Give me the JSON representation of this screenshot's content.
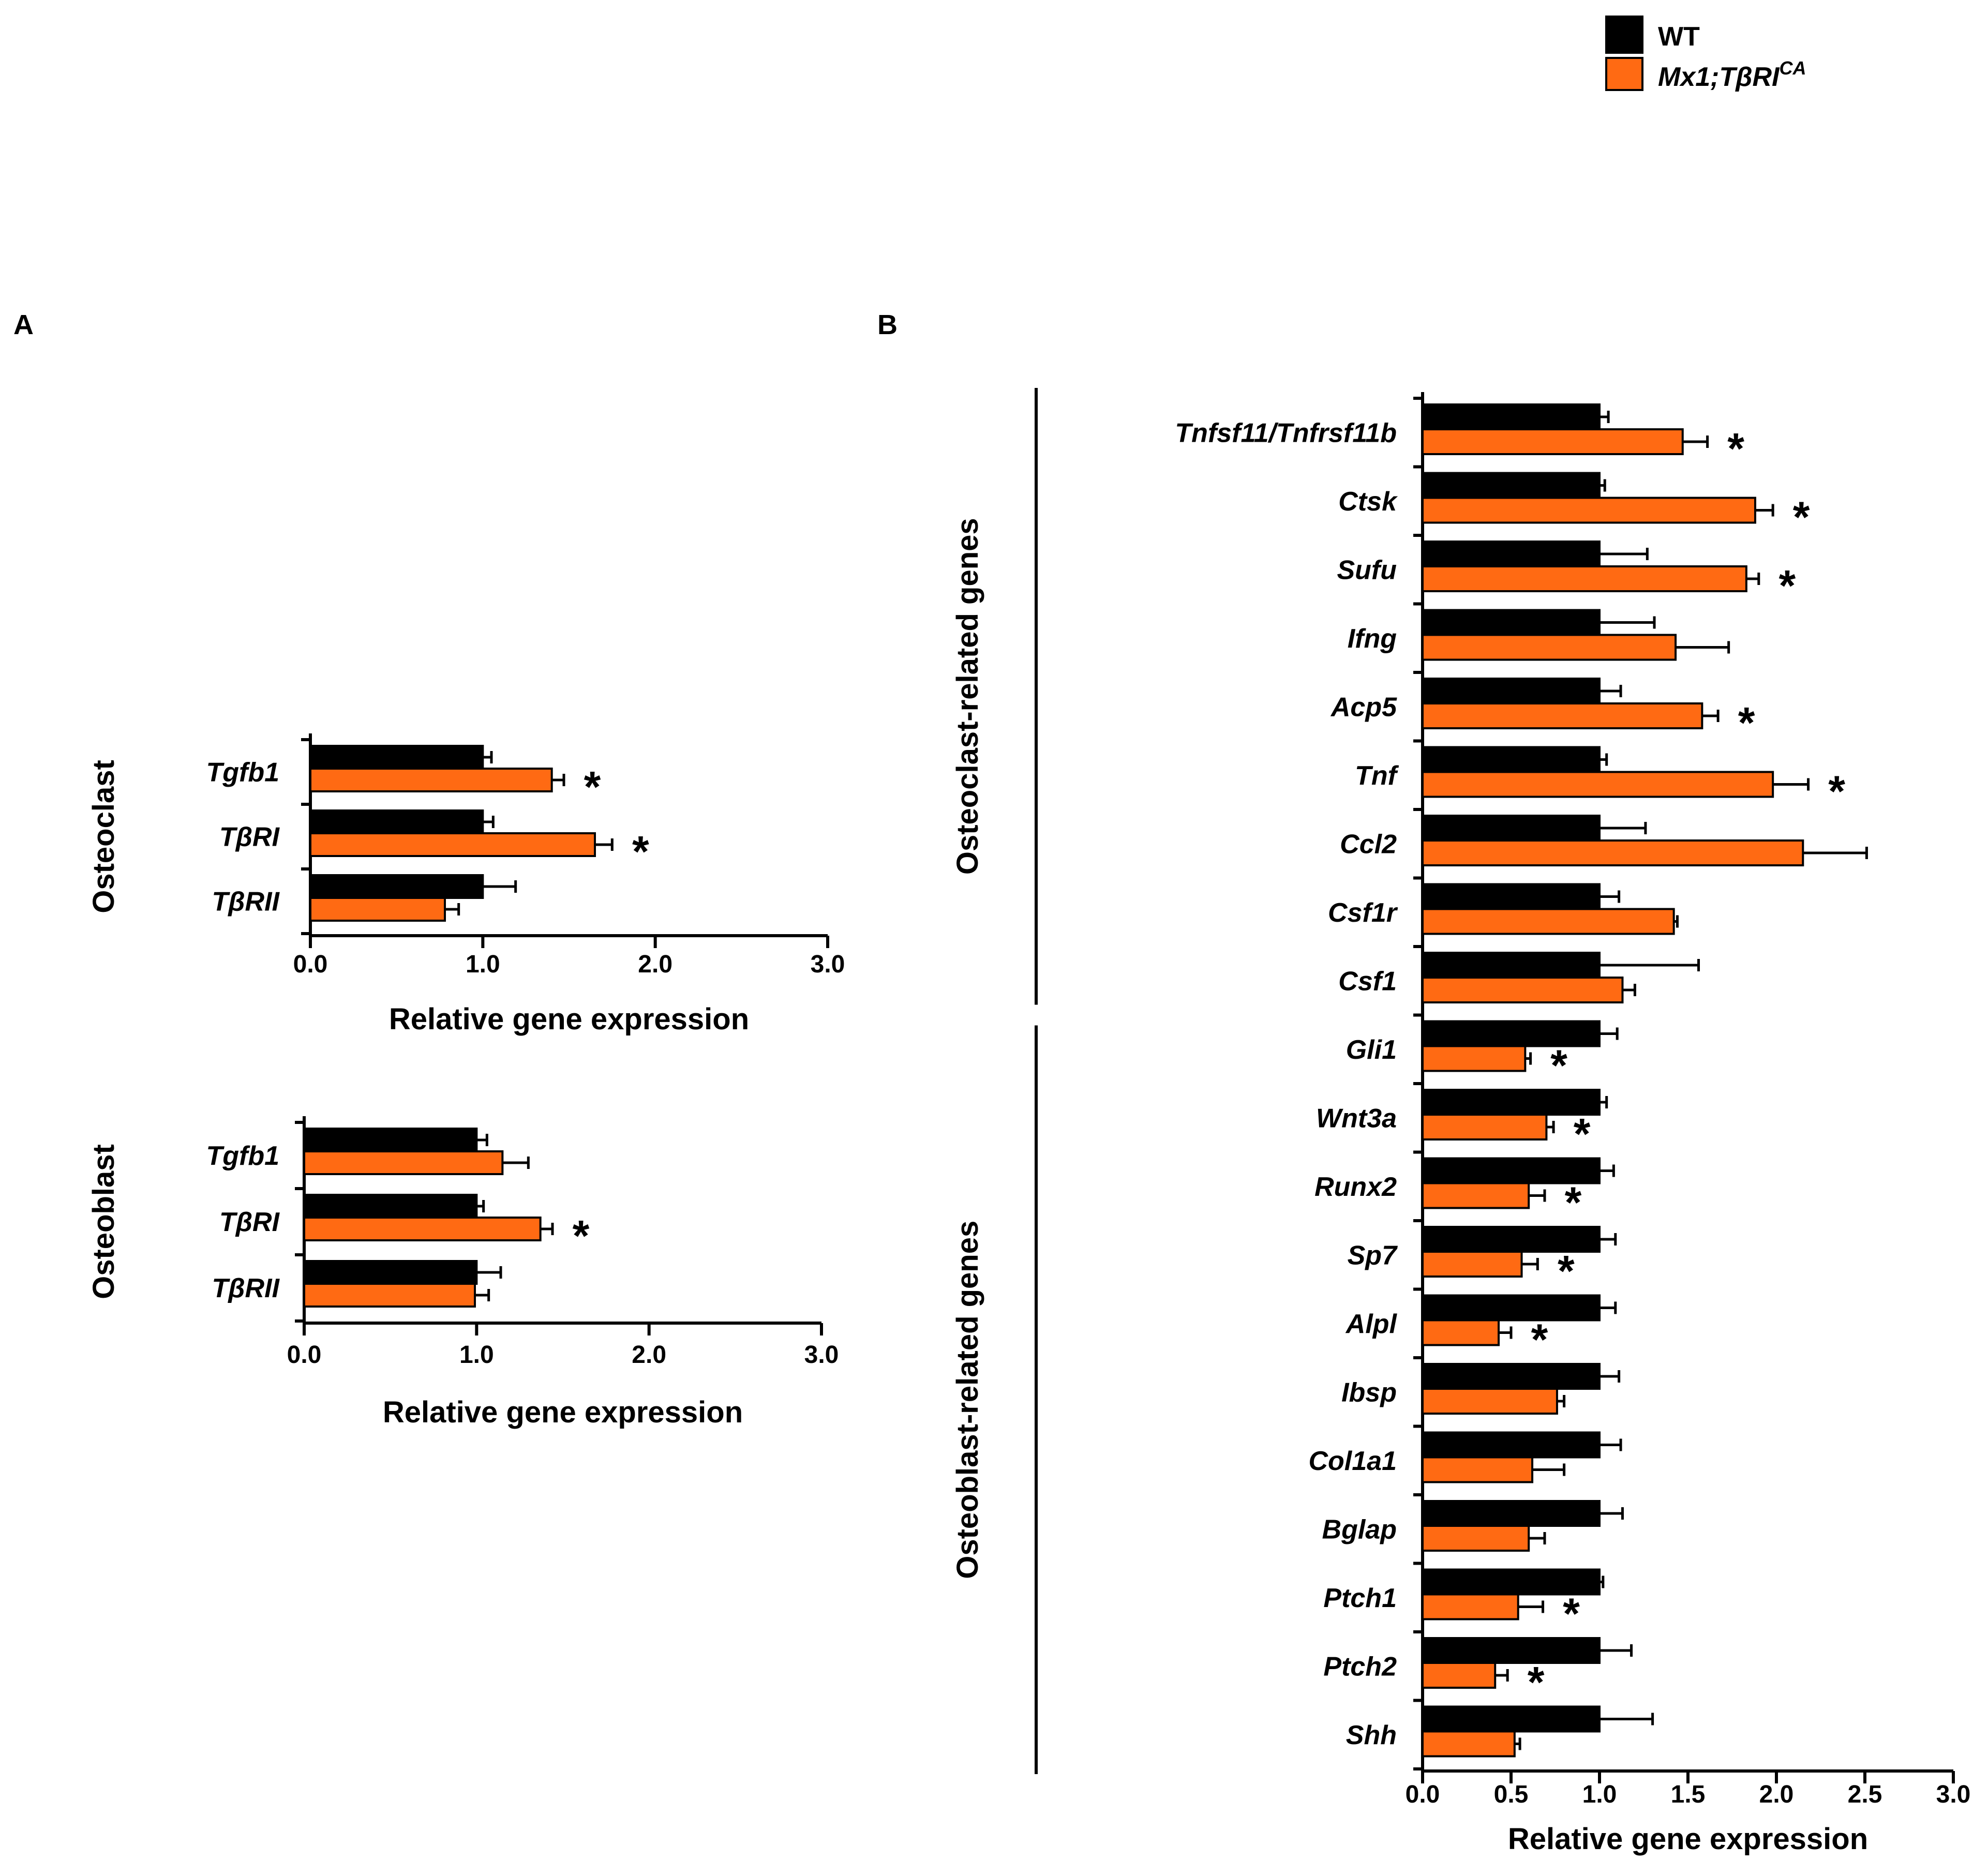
{
  "legend": {
    "wt": "WT",
    "mutant_main": "Mx1;TβRI",
    "mutant_sup": "CA"
  },
  "colors": {
    "wt": "#000000",
    "mutant": "#ff6a13"
  },
  "panels": {
    "A": {
      "label": "A"
    },
    "B": {
      "label": "B"
    }
  },
  "chart_data": [
    {
      "id": "A-osteoclast",
      "type": "bar",
      "orientation": "horizontal",
      "panel": "A",
      "group_label": "Osteoclast",
      "categories": [
        "Tgfb1",
        "TβRI",
        "TβRII"
      ],
      "series": [
        {
          "name": "WT",
          "values": [
            1.0,
            1.0,
            1.0
          ],
          "errors": [
            0.05,
            0.06,
            0.19
          ]
        },
        {
          "name": "Mx1;TβRICA",
          "values": [
            1.4,
            1.65,
            0.78
          ],
          "errors": [
            0.07,
            0.1,
            0.08
          ]
        }
      ],
      "significant": [
        true,
        true,
        false
      ],
      "xlabel": "Relative gene expression",
      "xlim": [
        0,
        3
      ],
      "xticks": [
        "0.0",
        "1.0",
        "2.0",
        "3.0"
      ]
    },
    {
      "id": "A-osteoblast",
      "type": "bar",
      "orientation": "horizontal",
      "panel": "A",
      "group_label": "Osteoblast",
      "categories": [
        "Tgfb1",
        "TβRI",
        "TβRII"
      ],
      "series": [
        {
          "name": "WT",
          "values": [
            1.0,
            1.0,
            1.0
          ],
          "errors": [
            0.06,
            0.04,
            0.14
          ]
        },
        {
          "name": "Mx1;TβRICA",
          "values": [
            1.15,
            1.37,
            0.99
          ],
          "errors": [
            0.15,
            0.07,
            0.08
          ]
        }
      ],
      "significant": [
        false,
        true,
        false
      ],
      "xlabel": "Relative gene expression",
      "xlim": [
        0,
        3
      ],
      "xticks": [
        "0.0",
        "1.0",
        "2.0",
        "3.0"
      ]
    },
    {
      "id": "B",
      "type": "bar",
      "orientation": "horizontal",
      "panel": "B",
      "groups": [
        {
          "label": "Osteoclast-related genes",
          "count": 9
        },
        {
          "label": "Osteoblast-related genes",
          "count": 11
        }
      ],
      "categories": [
        "Tnfsf11/Tnfrsf11b",
        "Ctsk",
        "Sufu",
        "Ifng",
        "Acp5",
        "Tnf",
        "Ccl2",
        "Csf1r",
        "Csf1",
        "Gli1",
        "Wnt3a",
        "Runx2",
        "Sp7",
        "Alpl",
        "Ibsp",
        "Col1a1",
        "Bglap",
        "Ptch1",
        "Ptch2",
        "Shh"
      ],
      "series": [
        {
          "name": "WT",
          "values": [
            1.0,
            1.0,
            1.0,
            1.0,
            1.0,
            1.0,
            1.0,
            1.0,
            1.0,
            1.0,
            1.0,
            1.0,
            1.0,
            1.0,
            1.0,
            1.0,
            1.0,
            1.0,
            1.0,
            1.0
          ],
          "errors": [
            0.05,
            0.03,
            0.27,
            0.31,
            0.12,
            0.04,
            0.26,
            0.11,
            0.56,
            0.1,
            0.04,
            0.08,
            0.09,
            0.09,
            0.11,
            0.12,
            0.13,
            0.02,
            0.18,
            0.3
          ]
        },
        {
          "name": "Mx1;TβRICA",
          "values": [
            1.47,
            1.88,
            1.83,
            1.43,
            1.58,
            1.98,
            2.15,
            1.42,
            1.13,
            0.58,
            0.7,
            0.6,
            0.56,
            0.43,
            0.76,
            0.62,
            0.6,
            0.54,
            0.41,
            0.52
          ],
          "errors": [
            0.14,
            0.1,
            0.07,
            0.3,
            0.09,
            0.2,
            0.36,
            0.02,
            0.07,
            0.03,
            0.04,
            0.09,
            0.09,
            0.07,
            0.04,
            0.18,
            0.09,
            0.14,
            0.07,
            0.03
          ]
        }
      ],
      "significant": [
        true,
        true,
        true,
        false,
        true,
        true,
        false,
        false,
        false,
        true,
        true,
        true,
        true,
        true,
        false,
        false,
        false,
        true,
        true,
        false
      ],
      "xlabel": "Relative gene expression",
      "xlim": [
        0,
        3
      ],
      "xticks": [
        "0.0",
        "0.5",
        "1.0",
        "1.5",
        "2.0",
        "2.5",
        "3.0"
      ]
    }
  ]
}
